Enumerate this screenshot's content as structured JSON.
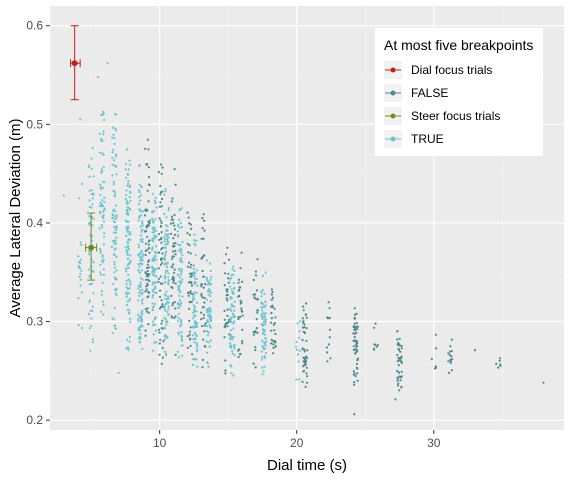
{
  "chart_data": {
    "type": "scatter",
    "title": "",
    "xlabel": "Dial time (s)",
    "ylabel": "Average Lateral Deviation (m)",
    "xlim": [
      2.0,
      39.5
    ],
    "ylim": [
      0.19,
      0.62
    ],
    "x_ticks": [
      10,
      20,
      30
    ],
    "y_ticks": [
      0.2,
      0.3,
      0.4,
      0.5,
      0.6
    ],
    "x_tick_labels": [
      "10",
      "20",
      "30"
    ],
    "y_tick_labels": [
      "0.2",
      "0.3",
      "0.4",
      "0.5",
      "0.6"
    ],
    "grid": true,
    "legend": {
      "title": "At most five breakpoints",
      "position": "top-right",
      "entries": [
        {
          "label": "Dial focus trials",
          "color": "#c0201a"
        },
        {
          "label": "FALSE",
          "color": "#4e878c"
        },
        {
          "label": "Steer focus trials",
          "color": "#6b8e23"
        },
        {
          "label": "TRUE",
          "color": "#6fc3d1"
        }
      ]
    },
    "series": [
      {
        "name": "FALSE",
        "color": "#4e878c",
        "clusters": [
          {
            "x": 9.1,
            "y_min": 0.26,
            "y_max": 0.485,
            "n": 70
          },
          {
            "x": 10.1,
            "y_min": 0.25,
            "y_max": 0.47,
            "n": 60
          },
          {
            "x": 11.0,
            "y_min": 0.26,
            "y_max": 0.455,
            "n": 50
          },
          {
            "x": 12.2,
            "y_min": 0.245,
            "y_max": 0.42,
            "n": 45
          },
          {
            "x": 13.2,
            "y_min": 0.245,
            "y_max": 0.42,
            "n": 40
          },
          {
            "x": 14.9,
            "y_min": 0.24,
            "y_max": 0.38,
            "n": 35
          },
          {
            "x": 15.9,
            "y_min": 0.24,
            "y_max": 0.375,
            "n": 30
          },
          {
            "x": 17.0,
            "y_min": 0.25,
            "y_max": 0.37,
            "n": 25
          },
          {
            "x": 18.3,
            "y_min": 0.24,
            "y_max": 0.345,
            "n": 28
          },
          {
            "x": 20.6,
            "y_min": 0.225,
            "y_max": 0.32,
            "n": 45
          },
          {
            "x": 22.3,
            "y_min": 0.25,
            "y_max": 0.32,
            "n": 12
          },
          {
            "x": 24.3,
            "y_min": 0.235,
            "y_max": 0.325,
            "n": 55
          },
          {
            "x": 25.8,
            "y_min": 0.255,
            "y_max": 0.3,
            "n": 8
          },
          {
            "x": 27.5,
            "y_min": 0.23,
            "y_max": 0.3,
            "n": 45
          },
          {
            "x": 30.0,
            "y_min": 0.24,
            "y_max": 0.29,
            "n": 6
          },
          {
            "x": 31.2,
            "y_min": 0.24,
            "y_max": 0.285,
            "n": 14
          },
          {
            "x": 34.7,
            "y_min": 0.245,
            "y_max": 0.265,
            "n": 6
          }
        ],
        "points": [
          {
            "x": 33.0,
            "y": 0.271
          },
          {
            "x": 38.0,
            "y": 0.238
          },
          {
            "x": 24.2,
            "y": 0.206
          },
          {
            "x": 27.2,
            "y": 0.221
          }
        ]
      },
      {
        "name": "TRUE",
        "color": "#6fc3d1",
        "clusters": [
          {
            "x": 4.2,
            "y_min": 0.29,
            "y_max": 0.44,
            "n": 20
          },
          {
            "x": 5.0,
            "y_min": 0.26,
            "y_max": 0.48,
            "n": 60
          },
          {
            "x": 5.8,
            "y_min": 0.3,
            "y_max": 0.52,
            "n": 70
          },
          {
            "x": 6.7,
            "y_min": 0.27,
            "y_max": 0.52,
            "n": 90
          },
          {
            "x": 7.7,
            "y_min": 0.27,
            "y_max": 0.48,
            "n": 110
          },
          {
            "x": 8.6,
            "y_min": 0.26,
            "y_max": 0.47,
            "n": 110
          },
          {
            "x": 9.6,
            "y_min": 0.27,
            "y_max": 0.43,
            "n": 100
          },
          {
            "x": 10.5,
            "y_min": 0.26,
            "y_max": 0.44,
            "n": 90
          },
          {
            "x": 11.5,
            "y_min": 0.26,
            "y_max": 0.42,
            "n": 80
          },
          {
            "x": 12.6,
            "y_min": 0.25,
            "y_max": 0.39,
            "n": 75
          },
          {
            "x": 13.6,
            "y_min": 0.25,
            "y_max": 0.37,
            "n": 70
          },
          {
            "x": 15.3,
            "y_min": 0.24,
            "y_max": 0.36,
            "n": 70
          },
          {
            "x": 17.6,
            "y_min": 0.245,
            "y_max": 0.35,
            "n": 70
          },
          {
            "x": 20.1,
            "y_min": 0.235,
            "y_max": 0.32,
            "n": 12
          }
        ],
        "points": [
          {
            "x": 6.2,
            "y": 0.562
          },
          {
            "x": 5.5,
            "y": 0.548
          },
          {
            "x": 4.2,
            "y": 0.505
          },
          {
            "x": 3.0,
            "y": 0.428
          },
          {
            "x": 7.0,
            "y": 0.248
          }
        ]
      }
    ],
    "error_points": [
      {
        "name": "Dial focus trials",
        "color": "#c0201a",
        "x": 3.8,
        "y": 0.562,
        "y_low": 0.525,
        "y_high": 0.6,
        "x_low": 3.5,
        "x_high": 4.2
      },
      {
        "name": "Steer focus trials",
        "color": "#6b8e23",
        "x": 5.0,
        "y": 0.375,
        "y_low": 0.342,
        "y_high": 0.41,
        "x_low": 4.6,
        "x_high": 5.4
      }
    ]
  }
}
